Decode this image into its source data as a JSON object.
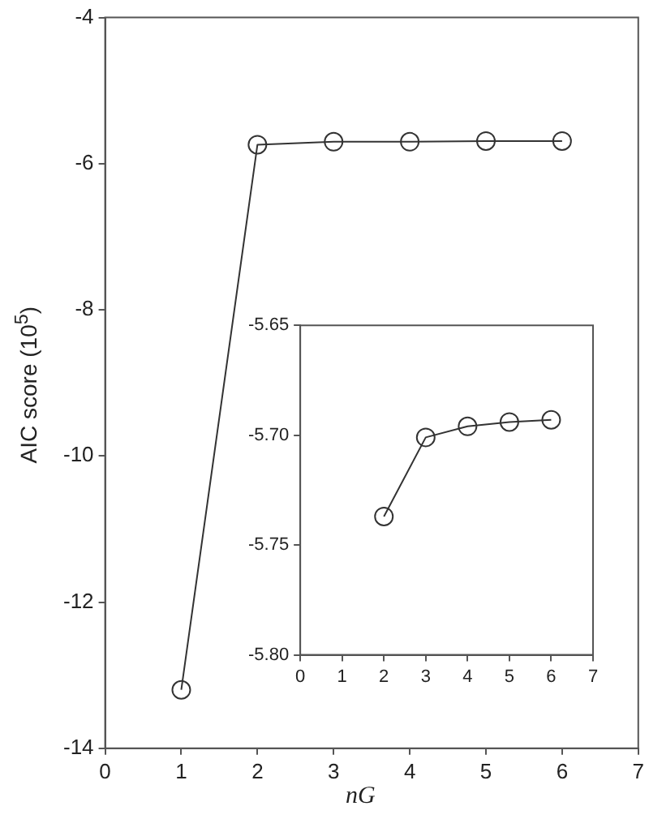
{
  "chart_data": [
    {
      "type": "line",
      "xlabel": "nG",
      "ylabel": "AIC score (10$^{5}$)",
      "x": [
        1,
        2,
        3,
        4,
        5,
        6
      ],
      "values": [
        -13.2,
        -5.74,
        -5.7,
        -5.7,
        -5.69,
        -5.69
      ],
      "color": "#333333",
      "xlim": [
        0,
        7
      ],
      "ylim": [
        -14,
        -4
      ],
      "xticks": [
        0,
        1,
        2,
        3,
        4,
        5,
        6,
        7
      ],
      "yticks": [
        -14,
        -12,
        -10,
        -8,
        -6,
        -4
      ],
      "marker": "circle",
      "line_style": "solid",
      "grid": false,
      "legend": false
    },
    {
      "type": "line",
      "x": [
        2,
        3,
        4,
        5,
        6
      ],
      "values": [
        -5.737,
        -5.701,
        -5.696,
        -5.694,
        -5.693
      ],
      "color": "#333333",
      "xlim": [
        0,
        7
      ],
      "ylim": [
        -5.8,
        -5.65
      ],
      "xticks": [
        0,
        1,
        2,
        3,
        4,
        5,
        6,
        7
      ],
      "yticks": [
        {
          "value": -5.8,
          "label": "-5.80"
        },
        {
          "value": -5.75,
          "label": "-5.75"
        },
        {
          "value": -5.7,
          "label": "-5.70"
        },
        {
          "value": -5.65,
          "label": "-5.65"
        }
      ],
      "marker": "circle",
      "line_style": "solid",
      "grid": false,
      "legend": false
    }
  ]
}
